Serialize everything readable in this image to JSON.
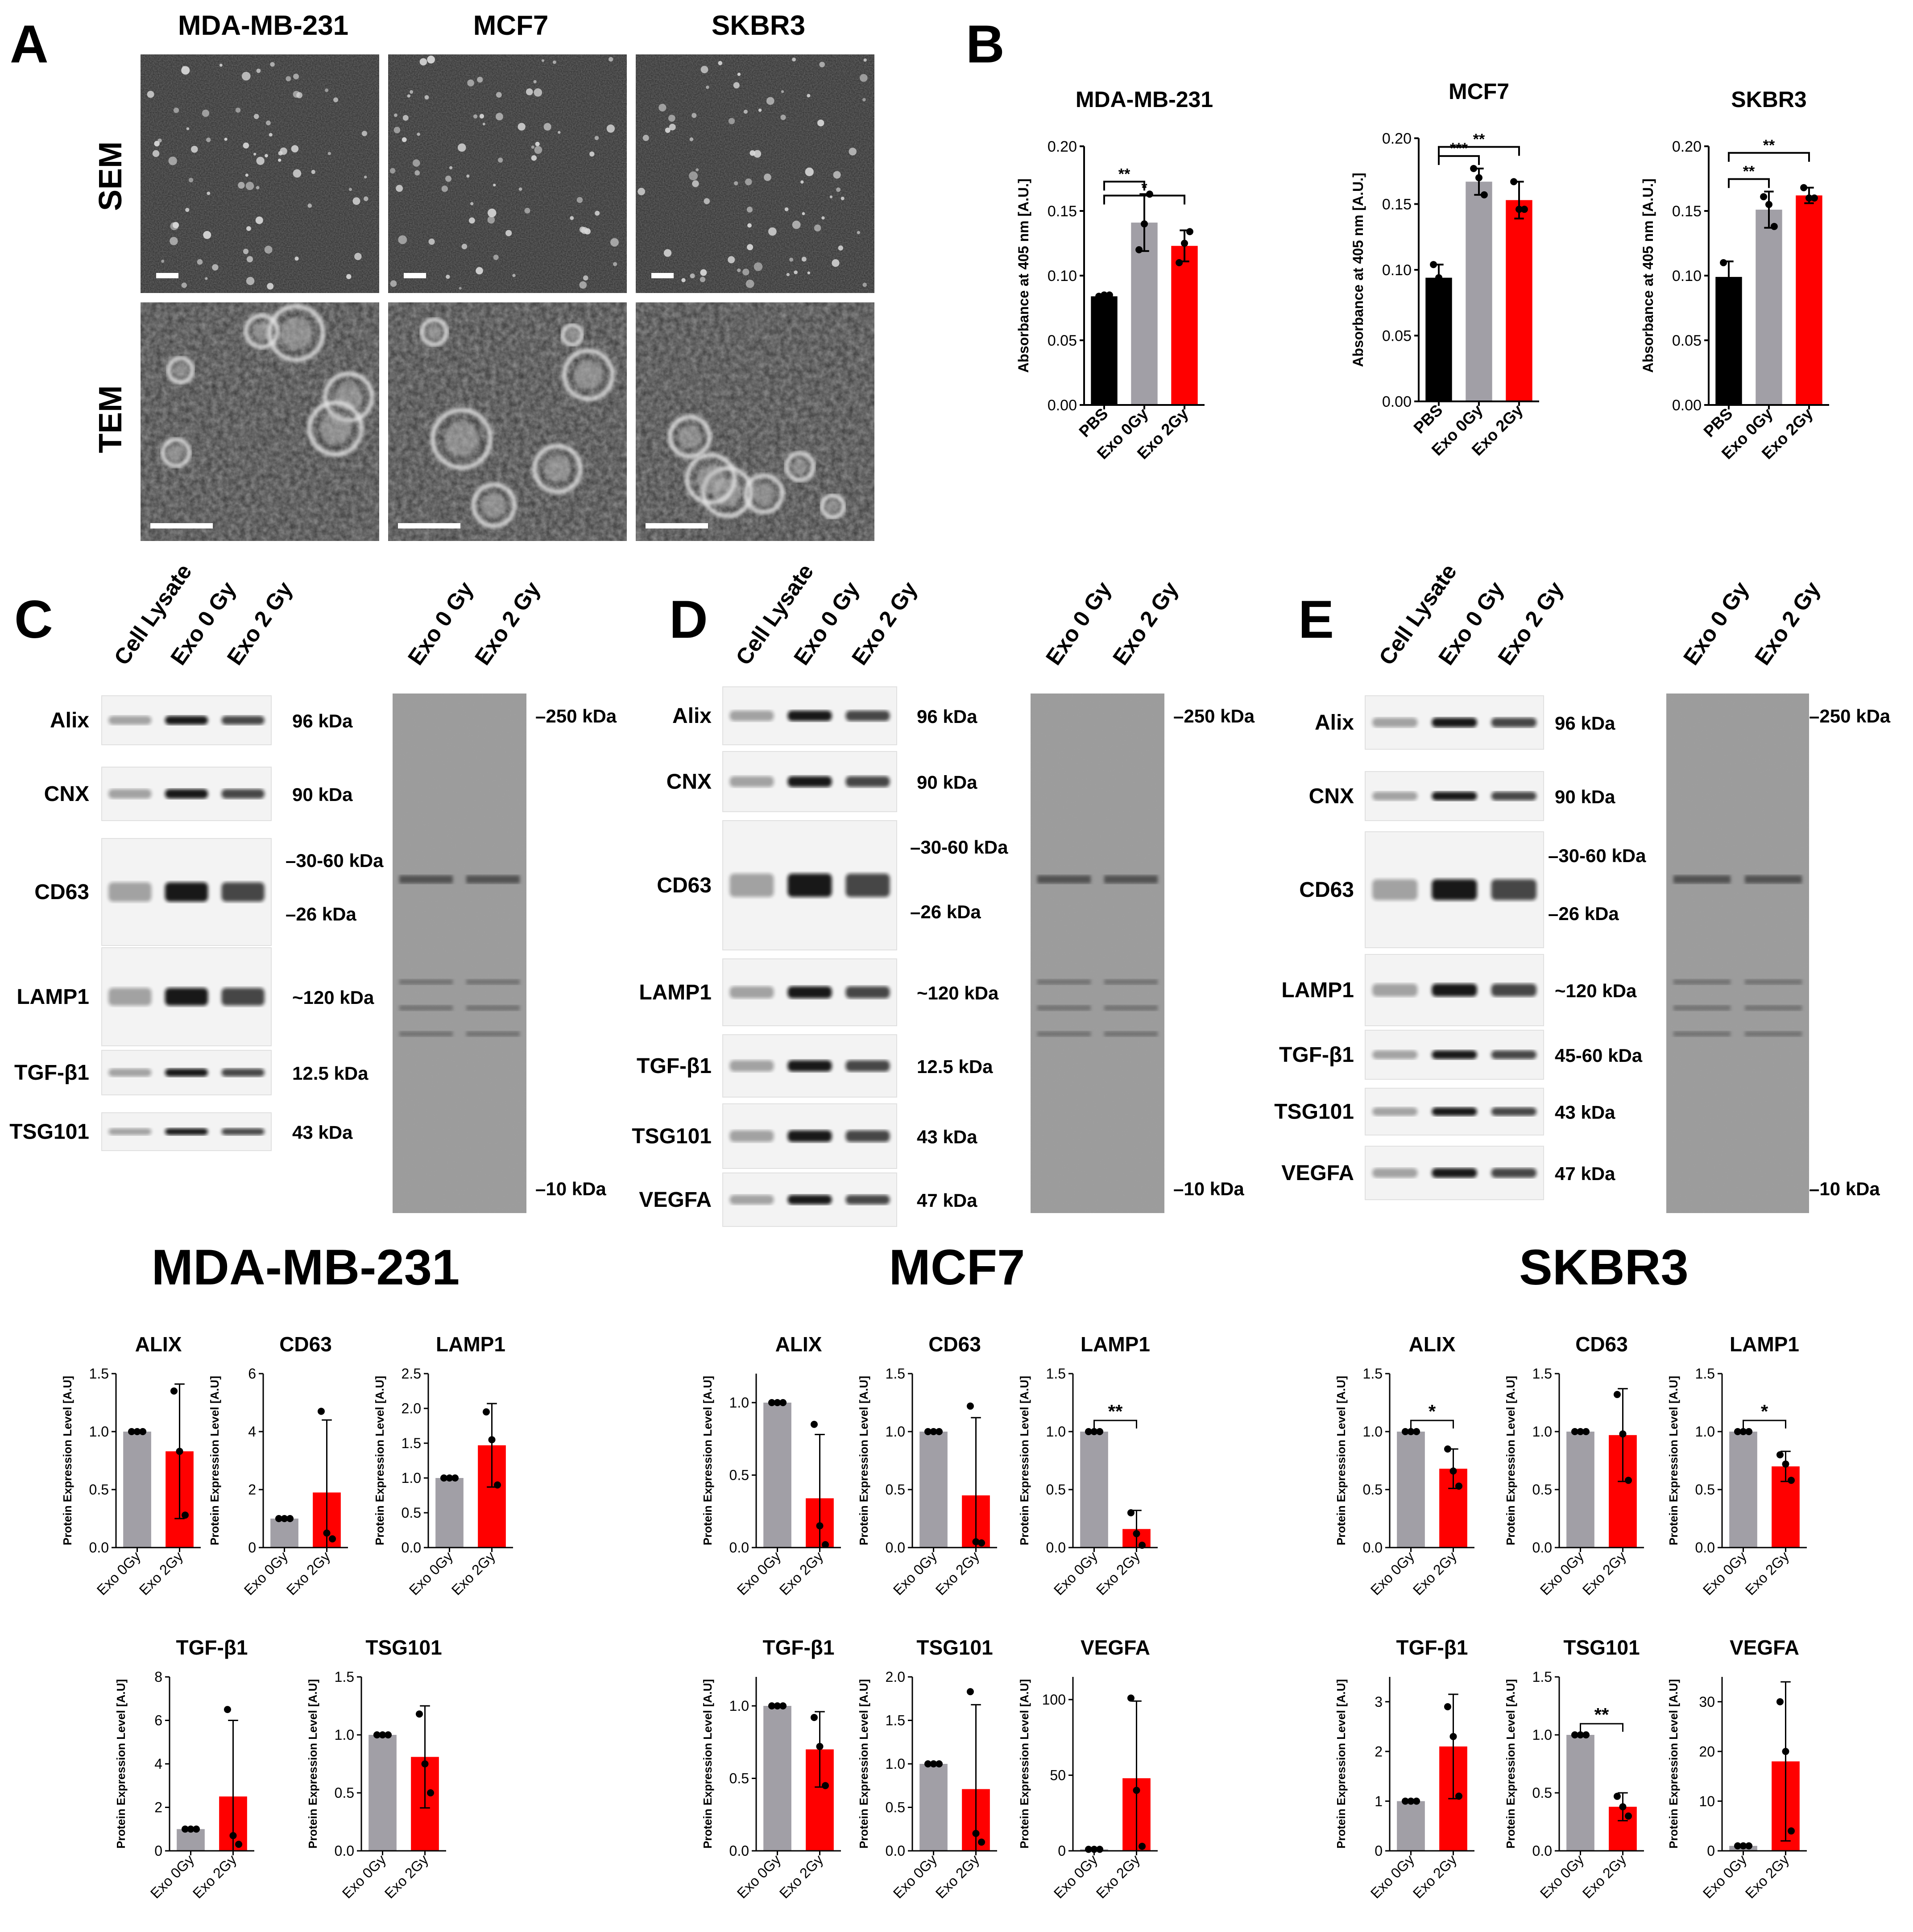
{
  "figure": {
    "panel_letters": {
      "a": "A",
      "b": "B",
      "c": "C",
      "d": "D",
      "e": "E"
    },
    "panel_a": {
      "columns": [
        "MDA-MB-231",
        "MCF7",
        "SKBR3"
      ],
      "rows": [
        "SEM",
        "TEM"
      ]
    },
    "western": [
      {
        "panel": "C",
        "lanes": [
          "Cell Lysate",
          "Exo 0 Gy",
          "Exo 2 Gy"
        ],
        "ponceau_lanes": [
          "Exo 0 Gy",
          "Exo 2 Gy"
        ],
        "blots": [
          {
            "label": "Alix",
            "kda": [
              "96 kDa"
            ]
          },
          {
            "label": "CNX",
            "kda": [
              "90 kDa"
            ]
          },
          {
            "label": "CD63",
            "kda": [
              "–30-60 kDa",
              "–26 kDa"
            ]
          },
          {
            "label": "LAMP1",
            "kda": [
              "~120 kDa"
            ]
          },
          {
            "label": "TGF-β1",
            "kda": [
              "12.5 kDa"
            ]
          },
          {
            "label": "TSG101",
            "kda": [
              "43 kDa"
            ]
          }
        ],
        "ponceau_markers": [
          "–250 kDa",
          "–10 kDa"
        ]
      },
      {
        "panel": "D",
        "lanes": [
          "Cell Lysate",
          "Exo 0 Gy",
          "Exo 2 Gy"
        ],
        "ponceau_lanes": [
          "Exo 0 Gy",
          "Exo 2 Gy"
        ],
        "blots": [
          {
            "label": "Alix",
            "kda": [
              "96 kDa"
            ]
          },
          {
            "label": "CNX",
            "kda": [
              "90 kDa"
            ]
          },
          {
            "label": "CD63",
            "kda": [
              "–30-60 kDa",
              "–26 kDa"
            ]
          },
          {
            "label": "LAMP1",
            "kda": [
              "~120 kDa"
            ]
          },
          {
            "label": "TGF-β1",
            "kda": [
              "12.5 kDa"
            ]
          },
          {
            "label": "TSG101",
            "kda": [
              "43 kDa"
            ]
          },
          {
            "label": "VEGFA",
            "kda": [
              "47 kDa"
            ]
          }
        ],
        "ponceau_markers": [
          "–250 kDa",
          "–10 kDa"
        ]
      },
      {
        "panel": "E",
        "lanes": [
          "Cell Lysate",
          "Exo 0 Gy",
          "Exo 2 Gy"
        ],
        "ponceau_lanes": [
          "Exo 0 Gy",
          "Exo 2 Gy"
        ],
        "blots": [
          {
            "label": "Alix",
            "kda": [
              "96 kDa"
            ]
          },
          {
            "label": "CNX",
            "kda": [
              "90 kDa"
            ]
          },
          {
            "label": "CD63",
            "kda": [
              "–30-60 kDa",
              "–26 kDa"
            ]
          },
          {
            "label": "LAMP1",
            "kda": [
              "~120 kDa"
            ]
          },
          {
            "label": "TGF-β1",
            "kda": [
              "45-60 kDa"
            ]
          },
          {
            "label": "TSG101",
            "kda": [
              "43 kDa"
            ]
          },
          {
            "label": "VEGFA",
            "kda": [
              "47 kDa"
            ]
          }
        ],
        "ponceau_markers": [
          "–250 kDa",
          "–10 kDa"
        ]
      }
    ],
    "group_titles": [
      "MDA-MB-231",
      "MCF7",
      "SKBR3"
    ],
    "colors": {
      "pbs": "#000000",
      "exo0": "#a19fa6",
      "exo2": "#ff0000"
    }
  },
  "chart_data": [
    {
      "id": "B-MDA",
      "type": "bar",
      "title": "MDA-MB-231",
      "ylabel": "Absorbance at 405 nm [A.U.]",
      "categories": [
        "PBS",
        "Exo 0Gy",
        "Exo 2Gy"
      ],
      "values": [
        0.084,
        0.141,
        0.123
      ],
      "errors": [
        0.001,
        0.022,
        0.012
      ],
      "points": [
        [
          0.084,
          0.085,
          0.085
        ],
        [
          0.12,
          0.14,
          0.163
        ],
        [
          0.11,
          0.125,
          0.134
        ]
      ],
      "ylim": [
        0,
        0.2
      ],
      "yticks": [
        "0.00",
        "0.05",
        "0.10",
        "0.15",
        "0.20"
      ],
      "brackets": [
        {
          "a": 0,
          "b": 1,
          "label": "**"
        },
        {
          "a": 0,
          "b": 2,
          "label": "*"
        }
      ]
    },
    {
      "id": "B-MCF7",
      "type": "bar",
      "title": "MCF7",
      "ylabel": "Absorbance at 405 nm [A.U.]",
      "categories": [
        "PBS",
        "Exo 0Gy",
        "Exo 2Gy"
      ],
      "values": [
        0.094,
        0.167,
        0.153
      ],
      "errors": [
        0.01,
        0.01,
        0.014
      ],
      "points": [
        [
          0.104,
          0.094,
          0.085
        ],
        [
          0.177,
          0.17,
          0.157
        ],
        [
          0.167,
          0.146,
          0.146
        ]
      ],
      "ylim": [
        0,
        0.2
      ],
      "yticks": [
        "0.00",
        "0.05",
        "0.10",
        "0.15",
        "0.20"
      ],
      "brackets": [
        {
          "a": 0,
          "b": 1,
          "label": "***"
        },
        {
          "a": 0,
          "b": 2,
          "label": "**"
        }
      ]
    },
    {
      "id": "B-SKBR3",
      "type": "bar",
      "title": "SKBR3",
      "ylabel": "Absorbance at 405 nm [A.U.]",
      "categories": [
        "PBS",
        "Exo 0Gy",
        "Exo 2Gy"
      ],
      "values": [
        0.099,
        0.151,
        0.162
      ],
      "errors": [
        0.012,
        0.014,
        0.006
      ],
      "points": [
        [
          0.11,
          0.095,
          0.092
        ],
        [
          0.161,
          0.155,
          0.138
        ],
        [
          0.168,
          0.16,
          0.16
        ]
      ],
      "ylim": [
        0,
        0.2
      ],
      "yticks": [
        "0.00",
        "0.05",
        "0.10",
        "0.15",
        "0.20"
      ],
      "brackets": [
        {
          "a": 0,
          "b": 1,
          "label": "**"
        },
        {
          "a": 0,
          "b": 2,
          "label": "**"
        }
      ]
    },
    {
      "id": "MDA-ALIX",
      "type": "bar",
      "title": "ALIX",
      "ylabel": "Protein Expression Level [A.U]",
      "categories": [
        "Exo 0Gy",
        "Exo 2Gy"
      ],
      "values": [
        1.0,
        0.83
      ],
      "errors": [
        0,
        0.58
      ],
      "points": [
        [
          1,
          1,
          1
        ],
        [
          1.35,
          0.83,
          0.28
        ]
      ],
      "ylim": [
        0,
        1.5
      ],
      "yticks": [
        "0.0",
        "0.5",
        "1.0",
        "1.5"
      ],
      "brackets": []
    },
    {
      "id": "MDA-CD63",
      "type": "bar",
      "title": "CD63",
      "ylabel": "Protein Expression Level [A.U]",
      "categories": [
        "Exo 0Gy",
        "Exo 2Gy"
      ],
      "values": [
        1.0,
        1.9
      ],
      "errors": [
        0,
        2.5
      ],
      "points": [
        [
          1,
          1,
          1
        ],
        [
          4.7,
          0.5,
          0.3
        ]
      ],
      "ylim": [
        0,
        6
      ],
      "yticks": [
        "0",
        "2",
        "4",
        "6"
      ],
      "brackets": []
    },
    {
      "id": "MDA-LAMP1",
      "type": "bar",
      "title": "LAMP1",
      "ylabel": "Protein Expression Level [A.U]",
      "categories": [
        "Exo 0Gy",
        "Exo 2Gy"
      ],
      "values": [
        1.0,
        1.47
      ],
      "errors": [
        0,
        0.6
      ],
      "points": [
        [
          1,
          1,
          1
        ],
        [
          1.95,
          1.55,
          0.9
        ]
      ],
      "ylim": [
        0,
        2.5
      ],
      "yticks": [
        "0.0",
        "0.5",
        "1.0",
        "1.5",
        "2.0",
        "2.5"
      ],
      "brackets": []
    },
    {
      "id": "MDA-TGFB1",
      "type": "bar",
      "title": "TGF-β1",
      "ylabel": "Protein Expression Level [A.U]",
      "categories": [
        "Exo 0Gy",
        "Exo 2Gy"
      ],
      "values": [
        1.0,
        2.5
      ],
      "errors": [
        0,
        3.5
      ],
      "points": [
        [
          1,
          1,
          1
        ],
        [
          6.5,
          0.7,
          0.3
        ]
      ],
      "ylim": [
        0,
        8
      ],
      "yticks": [
        "0",
        "2",
        "4",
        "6",
        "8"
      ],
      "brackets": []
    },
    {
      "id": "MDA-TSG101",
      "type": "bar",
      "title": "TSG101",
      "ylabel": "Protein Expression Level [A.U]",
      "categories": [
        "Exo 0Gy",
        "Exo 2Gy"
      ],
      "values": [
        1.0,
        0.81
      ],
      "errors": [
        0,
        0.44
      ],
      "points": [
        [
          1,
          1,
          1
        ],
        [
          1.18,
          0.75,
          0.5
        ]
      ],
      "ylim": [
        0,
        1.5
      ],
      "yticks": [
        "0.0",
        "0.5",
        "1.0",
        "1.5"
      ],
      "brackets": []
    },
    {
      "id": "MCF7-ALIX",
      "type": "bar",
      "title": "ALIX",
      "ylabel": "Protein Expression Level [A.U]",
      "categories": [
        "Exo 0Gy",
        "Exo 2Gy"
      ],
      "values": [
        1.0,
        0.34
      ],
      "errors": [
        0,
        0.44
      ],
      "points": [
        [
          1,
          1,
          1
        ],
        [
          0.85,
          0.15,
          0.02
        ]
      ],
      "ylim": [
        0,
        1.2
      ],
      "yticks": [
        "0.0",
        "0.5",
        "1.0"
      ],
      "brackets": []
    },
    {
      "id": "MCF7-CD63",
      "type": "bar",
      "title": "CD63",
      "ylabel": "Protein Expression Level [A.U]",
      "categories": [
        "Exo 0Gy",
        "Exo 2Gy"
      ],
      "values": [
        1.0,
        0.45
      ],
      "errors": [
        0,
        0.67
      ],
      "points": [
        [
          1,
          1,
          1
        ],
        [
          1.22,
          0.05,
          0.04
        ]
      ],
      "ylim": [
        0,
        1.5
      ],
      "yticks": [
        "0.0",
        "0.5",
        "1.0",
        "1.5"
      ],
      "brackets": []
    },
    {
      "id": "MCF7-LAMP1",
      "type": "bar",
      "title": "LAMP1",
      "ylabel": "Protein Expression Level [A.U]",
      "categories": [
        "Exo 0Gy",
        "Exo 2Gy"
      ],
      "values": [
        1.0,
        0.16
      ],
      "errors": [
        0,
        0.16
      ],
      "points": [
        [
          1,
          1,
          1
        ],
        [
          0.3,
          0.12,
          0.02
        ]
      ],
      "ylim": [
        0,
        1.5
      ],
      "yticks": [
        "0.0",
        "0.5",
        "1.0",
        "1.5"
      ],
      "brackets": [
        {
          "a": 0,
          "b": 1,
          "label": "**"
        }
      ]
    },
    {
      "id": "MCF7-TGFB1",
      "type": "bar",
      "title": "TGF-β1",
      "ylabel": "Protein Expression Level [A.U]",
      "categories": [
        "Exo 0Gy",
        "Exo 2Gy"
      ],
      "values": [
        1.0,
        0.7
      ],
      "errors": [
        0,
        0.26
      ],
      "points": [
        [
          1,
          1,
          1
        ],
        [
          0.92,
          0.72,
          0.45
        ]
      ],
      "ylim": [
        0,
        1.2
      ],
      "yticks": [
        "0.0",
        "0.5",
        "1.0"
      ],
      "brackets": []
    },
    {
      "id": "MCF7-TSG101",
      "type": "bar",
      "title": "TSG101",
      "ylabel": "Protein Expression Level [A.U]",
      "categories": [
        "Exo 0Gy",
        "Exo 2Gy"
      ],
      "values": [
        1.0,
        0.71
      ],
      "errors": [
        0,
        0.97
      ],
      "points": [
        [
          1,
          1,
          1
        ],
        [
          1.83,
          0.2,
          0.1
        ]
      ],
      "ylim": [
        0,
        2.0
      ],
      "yticks": [
        "0.0",
        "0.5",
        "1.0",
        "1.5",
        "2.0"
      ],
      "brackets": []
    },
    {
      "id": "MCF7-VEGFA",
      "type": "bar",
      "title": "VEGFA",
      "ylabel": "Protein Expression Level [A.U]",
      "categories": [
        "Exo 0Gy",
        "Exo 2Gy"
      ],
      "values": [
        1.0,
        48
      ],
      "errors": [
        0,
        51
      ],
      "points": [
        [
          1,
          1,
          1
        ],
        [
          101,
          40,
          3
        ]
      ],
      "ylim": [
        0,
        115
      ],
      "yticks": [
        "0",
        "50",
        "100"
      ],
      "brackets": []
    },
    {
      "id": "SK-ALIX",
      "type": "bar",
      "title": "ALIX",
      "ylabel": "Protein Expression Level [A.U]",
      "categories": [
        "Exo 0Gy",
        "Exo 2Gy"
      ],
      "values": [
        1.0,
        0.68
      ],
      "errors": [
        0,
        0.17
      ],
      "points": [
        [
          1,
          1,
          1
        ],
        [
          0.85,
          0.66,
          0.53
        ]
      ],
      "ylim": [
        0,
        1.5
      ],
      "yticks": [
        "0.0",
        "0.5",
        "1.0",
        "1.5"
      ],
      "brackets": [
        {
          "a": 0,
          "b": 1,
          "label": "*"
        }
      ]
    },
    {
      "id": "SK-CD63",
      "type": "bar",
      "title": "CD63",
      "ylabel": "Protein Expression Level [A.U]",
      "categories": [
        "Exo 0Gy",
        "Exo 2Gy"
      ],
      "values": [
        1.0,
        0.97
      ],
      "errors": [
        0,
        0.4
      ],
      "points": [
        [
          1,
          1,
          1
        ],
        [
          1.32,
          0.98,
          0.58
        ]
      ],
      "ylim": [
        0,
        1.5
      ],
      "yticks": [
        "0.0",
        "0.5",
        "1.0",
        "1.5"
      ],
      "brackets": []
    },
    {
      "id": "SK-LAMP1",
      "type": "bar",
      "title": "LAMP1",
      "ylabel": "Protein Expression Level [A.U]",
      "categories": [
        "Exo 0Gy",
        "Exo 2Gy"
      ],
      "values": [
        1.0,
        0.7
      ],
      "errors": [
        0,
        0.13
      ],
      "points": [
        [
          1,
          1,
          1
        ],
        [
          0.8,
          0.72,
          0.58
        ]
      ],
      "ylim": [
        0,
        1.5
      ],
      "yticks": [
        "0.0",
        "0.5",
        "1.0",
        "1.5"
      ],
      "brackets": [
        {
          "a": 0,
          "b": 1,
          "label": "*"
        }
      ]
    },
    {
      "id": "SK-TGFB1",
      "type": "bar",
      "title": "TGF-β1",
      "ylabel": "Protein Expression Level [A.U]",
      "categories": [
        "Exo 0Gy",
        "Exo 2Gy"
      ],
      "values": [
        1.0,
        2.1
      ],
      "errors": [
        0,
        1.05
      ],
      "points": [
        [
          1,
          1,
          1
        ],
        [
          2.9,
          2.3,
          1.1
        ]
      ],
      "ylim": [
        0,
        3.5
      ],
      "yticks": [
        "0",
        "1",
        "2",
        "3"
      ],
      "brackets": []
    },
    {
      "id": "SK-TSG101",
      "type": "bar",
      "title": "TSG101",
      "ylabel": "Protein Expression Level [A.U]",
      "categories": [
        "Exo 0Gy",
        "Exo 2Gy"
      ],
      "values": [
        1.0,
        0.38
      ],
      "errors": [
        0,
        0.12
      ],
      "points": [
        [
          1,
          1,
          1
        ],
        [
          0.47,
          0.38,
          0.3
        ]
      ],
      "ylim": [
        0,
        1.5
      ],
      "yticks": [
        "0.0",
        "0.5",
        "1.0",
        "1.5"
      ],
      "brackets": [
        {
          "a": 0,
          "b": 1,
          "label": "**"
        }
      ]
    },
    {
      "id": "SK-VEGFA",
      "type": "bar",
      "title": "VEGFA",
      "ylabel": "Protein Expression Level [A.U]",
      "categories": [
        "Exo 0Gy",
        "Exo 2Gy"
      ],
      "values": [
        1.0,
        18
      ],
      "errors": [
        0,
        16
      ],
      "points": [
        [
          1,
          1,
          1
        ],
        [
          30,
          20,
          4
        ]
      ],
      "ylim": [
        0,
        35
      ],
      "yticks": [
        "0",
        "10",
        "20",
        "30"
      ],
      "brackets": []
    }
  ]
}
